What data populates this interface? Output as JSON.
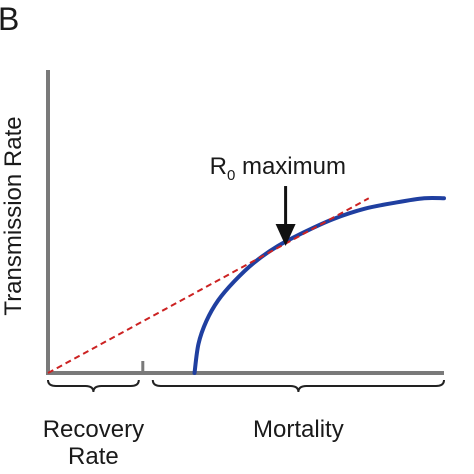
{
  "panel_label": "B",
  "chart_data": {
    "type": "line",
    "title": "",
    "ylabel": "Transmission Rate",
    "xlabel": "",
    "x_segments": [
      {
        "label_lines": [
          "Recovery",
          "Rate"
        ],
        "range": [
          0,
          0.3
        ]
      },
      {
        "label_lines": [
          "Mortality"
        ],
        "range": [
          0.3,
          1.0
        ]
      }
    ],
    "xlim": [
      0,
      1
    ],
    "ylim": [
      0,
      1
    ],
    "series": [
      {
        "kind": "curve",
        "color": "#1f3fa0",
        "style": "solid",
        "x": [
          0.37,
          0.38,
          0.4,
          0.43,
          0.47,
          0.52,
          0.58,
          0.65,
          0.72,
          0.8,
          0.88,
          0.95,
          1.0
        ],
        "y": [
          0.0,
          0.14,
          0.25,
          0.35,
          0.44,
          0.53,
          0.61,
          0.68,
          0.74,
          0.79,
          0.82,
          0.84,
          0.84
        ]
      },
      {
        "kind": "tangent",
        "color": "#cc2222",
        "style": "dashed",
        "x": [
          0.0,
          0.81
        ],
        "y": [
          0.0,
          0.84
        ]
      }
    ],
    "annotations": [
      {
        "text_main": "R",
        "text_sub": "0",
        "text_rest": " maximum",
        "points_to": {
          "x": 0.6,
          "y": 0.62
        },
        "arrow": "down"
      }
    ],
    "grid": false,
    "axis_color": "#7a7a7a",
    "legend": "none"
  }
}
